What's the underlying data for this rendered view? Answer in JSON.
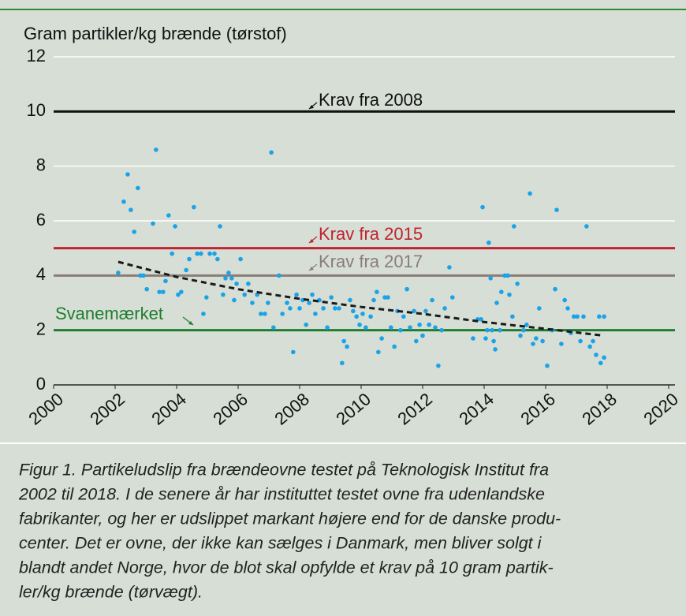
{
  "chart_data": {
    "type": "scatter",
    "y_label": "Gram partikler/kg brænde (tørstof)",
    "xlim": [
      2000,
      2020
    ],
    "xticks": [
      2000,
      2002,
      2004,
      2006,
      2008,
      2010,
      2012,
      2014,
      2016,
      2018,
      2020
    ],
    "ylim": [
      0,
      12
    ],
    "yticks": [
      0,
      2,
      4,
      6,
      8,
      10,
      12
    ],
    "grid": true,
    "color": "#1aa3e8",
    "x": [
      2002.1,
      2002.28,
      2002.41,
      2002.51,
      2002.62,
      2002.74,
      2002.82,
      2002.92,
      2003.03,
      2003.23,
      2003.33,
      2003.44,
      2003.56,
      2003.64,
      2003.74,
      2003.85,
      2003.95,
      2004.05,
      2004.15,
      2004.31,
      2004.41,
      2004.56,
      2004.67,
      2004.79,
      2004.87,
      2004.97,
      2005.08,
      2005.23,
      2005.33,
      2005.41,
      2005.51,
      2005.59,
      2005.69,
      2005.79,
      2005.87,
      2005.95,
      2006.08,
      2006.21,
      2006.33,
      2006.46,
      2006.62,
      2006.74,
      2006.87,
      2006.97,
      2007.08,
      2007.15,
      2007.33,
      2007.44,
      2007.59,
      2007.69,
      2007.79,
      2007.9,
      2008.0,
      2008.1,
      2008.21,
      2008.31,
      2008.41,
      2008.51,
      2008.64,
      2008.77,
      2008.9,
      2009.03,
      2009.15,
      2009.28,
      2009.38,
      2009.44,
      2009.54,
      2009.64,
      2009.74,
      2009.85,
      2009.95,
      2010.05,
      2010.15,
      2010.31,
      2010.41,
      2010.51,
      2010.56,
      2010.67,
      2010.77,
      2010.87,
      2010.97,
      2011.08,
      2011.18,
      2011.28,
      2011.38,
      2011.49,
      2011.59,
      2011.72,
      2011.79,
      2011.9,
      2012.0,
      2012.1,
      2012.21,
      2012.31,
      2012.41,
      2012.51,
      2012.62,
      2012.72,
      2012.87,
      2012.97,
      2013.64,
      2013.79,
      2013.9,
      2013.95,
      2014.05,
      2014.1,
      2014.15,
      2014.21,
      2014.26,
      2014.31,
      2014.36,
      2014.41,
      2014.51,
      2014.56,
      2014.67,
      2014.77,
      2014.82,
      2014.92,
      2014.97,
      2015.08,
      2015.18,
      2015.28,
      2015.38,
      2015.49,
      2015.59,
      2015.69,
      2015.79,
      2015.9,
      2016.05,
      2016.21,
      2016.31,
      2016.36,
      2016.51,
      2016.62,
      2016.72,
      2016.82,
      2016.92,
      2017.03,
      2017.13,
      2017.23,
      2017.33,
      2017.44,
      2017.54,
      2017.64,
      2017.74,
      2017.79,
      2017.9,
      2017.9
    ],
    "values": [
      4.1,
      6.7,
      7.7,
      6.4,
      5.6,
      7.2,
      4.0,
      4.0,
      3.5,
      5.9,
      8.6,
      3.4,
      3.4,
      3.8,
      6.2,
      4.8,
      5.8,
      3.3,
      3.4,
      4.2,
      4.6,
      6.5,
      4.8,
      4.8,
      2.6,
      3.2,
      4.8,
      4.8,
      4.6,
      5.8,
      3.3,
      3.9,
      4.1,
      3.9,
      3.1,
      3.7,
      4.6,
      3.3,
      3.7,
      3.0,
      3.3,
      2.6,
      2.6,
      3.0,
      8.5,
      2.1,
      4.0,
      2.6,
      3.0,
      2.8,
      1.2,
      3.3,
      2.8,
      3.1,
      2.2,
      3.0,
      3.3,
      2.6,
      3.1,
      2.8,
      2.1,
      3.2,
      2.8,
      2.8,
      0.8,
      1.6,
      1.4,
      3.1,
      2.7,
      2.5,
      2.2,
      2.6,
      2.1,
      2.5,
      3.1,
      3.4,
      1.2,
      1.7,
      3.2,
      3.2,
      2.1,
      1.4,
      2.7,
      2.0,
      2.5,
      3.5,
      2.1,
      2.7,
      1.6,
      2.2,
      1.8,
      2.7,
      2.2,
      3.1,
      2.1,
      0.7,
      2.0,
      2.8,
      4.3,
      3.2,
      1.7,
      2.4,
      2.4,
      6.5,
      1.7,
      2.0,
      5.2,
      3.9,
      2.0,
      1.6,
      1.3,
      3.0,
      2.0,
      3.4,
      4.0,
      4.0,
      3.3,
      2.5,
      5.8,
      3.7,
      1.8,
      2.0,
      2.2,
      7.0,
      1.5,
      1.7,
      2.8,
      1.6,
      0.7,
      2.0,
      3.5,
      6.4,
      1.5,
      3.1,
      2.8,
      1.9,
      2.5,
      2.5,
      1.6,
      2.5,
      5.8,
      1.4,
      1.6,
      1.1,
      2.5,
      0.8,
      2.5,
      1.0
    ],
    "trend": {
      "color": "#1a1a1a",
      "x": [
        2002.1,
        2004,
        2006,
        2008,
        2010,
        2012,
        2014,
        2016,
        2017.9
      ],
      "values": [
        4.5,
        3.95,
        3.5,
        3.15,
        2.85,
        2.6,
        2.3,
        2.05,
        1.8
      ]
    },
    "reference_lines": [
      {
        "label": "Krav fra 2008",
        "value": 10,
        "color": "#111111",
        "label_color": "#111111"
      },
      {
        "label": "Krav fra 2015",
        "value": 5,
        "color": "#c0232e",
        "label_color": "#c0232e"
      },
      {
        "label": "Krav fra 2017",
        "value": 4,
        "color": "#8a7d77",
        "label_color": "#8a7d77"
      },
      {
        "label": "Svanemærket",
        "value": 2,
        "color": "#1e7d2e",
        "label_color": "#1e7d2e"
      }
    ],
    "caption": [
      "Figur 1. Partikeludslip fra brændeovne testet på Teknologisk Institut fra",
      "2002 til 2018. I de senere år har instituttet testet ovne fra udenlandske",
      "fabrikanter, og her er udslippet markant højere end for de danske produ-",
      "center. Det er ovne, der ikke kan sælges i Danmark, men bliver solgt i",
      "blandt andet Norge, hvor de blot skal opfylde et krav på 10 gram partik-",
      "ler/kg brænde (tørvægt)."
    ]
  }
}
